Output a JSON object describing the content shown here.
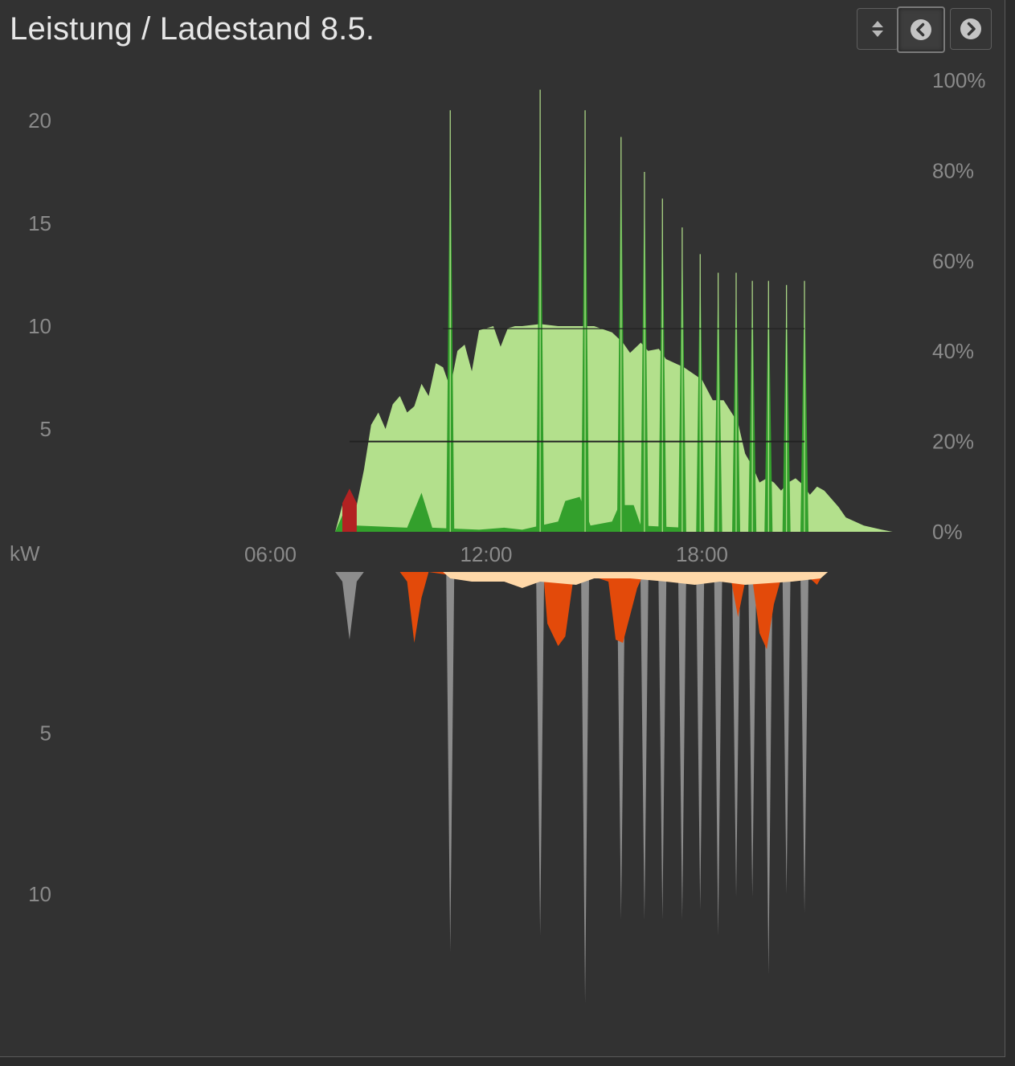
{
  "header": {
    "title": "Leistung / Ladestand 8.5.",
    "buttons": [
      {
        "name": "sort-toggle-button",
        "icon": "up-down-arrows-icon"
      },
      {
        "name": "previous-day-button",
        "icon": "chevron-left-circle-icon"
      },
      {
        "name": "next-day-button",
        "icon": "chevron-right-circle-icon"
      }
    ]
  },
  "chart_data": {
    "type": "area",
    "unit_label": "kW",
    "x_ticks": [
      "06:00",
      "12:00",
      "18:00"
    ],
    "x_range_hours": [
      -1.5,
      23
    ],
    "y_top": {
      "ticks": [
        "5",
        "10",
        "15",
        "20"
      ],
      "range": [
        0,
        20
      ]
    },
    "y_soc": {
      "ticks": [
        "0%",
        "20%",
        "40%",
        "60%",
        "80%",
        "100%"
      ],
      "range": [
        0,
        100
      ]
    },
    "y_bottom": {
      "ticks": [
        "5",
        "10"
      ],
      "range": [
        0,
        10
      ]
    },
    "colors": {
      "pv": "#b3e08c",
      "battery_discharge": "#33a02c",
      "grid_import": "#b22222",
      "consumption": "#8c8c8c",
      "battery_charge": "#e34a0a",
      "grid_export": "#ffd8a8",
      "soc_line": "#222222"
    },
    "series": [
      {
        "key": "pv",
        "points": [
          [
            7.8,
            0
          ],
          [
            8.0,
            1.3
          ],
          [
            8.2,
            1.2
          ],
          [
            8.4,
            1.3
          ],
          [
            8.6,
            3.0
          ],
          [
            8.8,
            5.2
          ],
          [
            9.0,
            5.8
          ],
          [
            9.2,
            5.0
          ],
          [
            9.4,
            6.2
          ],
          [
            9.6,
            6.6
          ],
          [
            9.8,
            5.8
          ],
          [
            10.0,
            6.1
          ],
          [
            10.2,
            7.2
          ],
          [
            10.4,
            6.6
          ],
          [
            10.6,
            8.2
          ],
          [
            10.8,
            8.0
          ],
          [
            11.0,
            7.0
          ],
          [
            11.2,
            8.8
          ],
          [
            11.4,
            9.1
          ],
          [
            11.6,
            7.8
          ],
          [
            11.8,
            9.8
          ],
          [
            12.0,
            9.9
          ],
          [
            12.2,
            10.0
          ],
          [
            12.4,
            9.0
          ],
          [
            12.6,
            9.9
          ],
          [
            12.8,
            10.0
          ],
          [
            13.0,
            10.0
          ],
          [
            13.5,
            10.1
          ],
          [
            14.0,
            10.0
          ],
          [
            14.5,
            10.0
          ],
          [
            15.0,
            10.0
          ],
          [
            15.5,
            9.7
          ],
          [
            15.8,
            9.2
          ],
          [
            16.0,
            8.7
          ],
          [
            16.3,
            9.2
          ],
          [
            16.5,
            8.8
          ],
          [
            16.8,
            8.9
          ],
          [
            17.0,
            8.4
          ],
          [
            17.5,
            8.0
          ],
          [
            18.0,
            7.4
          ],
          [
            18.3,
            6.4
          ],
          [
            18.6,
            6.4
          ],
          [
            19.0,
            5.3
          ],
          [
            19.2,
            3.8
          ],
          [
            19.4,
            3.2
          ],
          [
            19.6,
            2.4
          ],
          [
            19.8,
            2.6
          ],
          [
            20.0,
            2.4
          ],
          [
            20.2,
            2.0
          ],
          [
            20.4,
            2.4
          ],
          [
            20.6,
            2.6
          ],
          [
            20.8,
            2.3
          ],
          [
            21.0,
            1.8
          ],
          [
            21.2,
            2.2
          ],
          [
            21.4,
            2.0
          ],
          [
            21.8,
            1.2
          ],
          [
            22.0,
            0.7
          ],
          [
            22.5,
            0.3
          ],
          [
            23.0,
            0.1
          ],
          [
            23.3,
            0
          ]
        ]
      },
      {
        "key": "battery_discharge",
        "points": [
          [
            7.8,
            0
          ],
          [
            8.1,
            1.2
          ],
          [
            8.4,
            0.3
          ],
          [
            9.8,
            0.2
          ],
          [
            10.2,
            1.9
          ],
          [
            10.5,
            0.2
          ],
          [
            11.8,
            0.1
          ],
          [
            12.5,
            0.2
          ],
          [
            13.0,
            0.1
          ],
          [
            14.0,
            0.5
          ],
          [
            14.2,
            1.5
          ],
          [
            14.6,
            1.7
          ],
          [
            14.9,
            0.3
          ],
          [
            15.5,
            0.5
          ],
          [
            15.7,
            1.3
          ],
          [
            16.1,
            1.3
          ],
          [
            16.3,
            0.3
          ],
          [
            17.5,
            0.2
          ]
        ]
      },
      {
        "key": "grid_import",
        "points": [
          [
            8.0,
            1.4
          ],
          [
            8.2,
            2.1
          ],
          [
            8.4,
            1.4
          ]
        ]
      },
      {
        "key": "consumption",
        "points": [
          [
            7.8,
            0
          ],
          [
            8.0,
            0.3
          ],
          [
            8.2,
            2.1
          ],
          [
            8.4,
            0.3
          ],
          [
            8.6,
            0
          ]
        ]
      },
      {
        "key": "battery_charge",
        "points": [
          [
            9.6,
            0
          ],
          [
            9.8,
            0.3
          ],
          [
            10.0,
            2.2
          ],
          [
            10.2,
            0.8
          ],
          [
            10.4,
            0
          ],
          [
            11.6,
            0.2
          ],
          [
            12.0,
            0.1
          ],
          [
            12.6,
            0.3
          ],
          [
            13.0,
            0.1
          ],
          [
            13.6,
            0.2
          ],
          [
            13.7,
            1.6
          ],
          [
            14.0,
            2.3
          ],
          [
            14.2,
            2.0
          ],
          [
            14.4,
            0.4
          ],
          [
            14.6,
            0
          ],
          [
            15.4,
            0.3
          ],
          [
            15.6,
            2.1
          ],
          [
            15.8,
            2.2
          ],
          [
            16.2,
            0.5
          ],
          [
            16.4,
            0
          ],
          [
            18.8,
            0.2
          ],
          [
            19.0,
            1.4
          ],
          [
            19.2,
            0.3
          ],
          [
            19.4,
            0.2
          ],
          [
            19.6,
            1.9
          ],
          [
            19.8,
            2.4
          ],
          [
            20.0,
            1.0
          ],
          [
            20.2,
            0.2
          ],
          [
            21.0,
            0.2
          ],
          [
            21.2,
            0.4
          ],
          [
            21.4,
            0
          ]
        ]
      },
      {
        "key": "grid_export",
        "points": [
          [
            10.8,
            0
          ],
          [
            11.0,
            0.2
          ],
          [
            11.6,
            0.3
          ],
          [
            12.5,
            0.3
          ],
          [
            13.0,
            0.5
          ],
          [
            13.5,
            0.3
          ],
          [
            14.5,
            0.4
          ],
          [
            15.0,
            0.2
          ],
          [
            16.0,
            0.2
          ],
          [
            17.0,
            0.3
          ],
          [
            17.8,
            0.4
          ],
          [
            18.5,
            0.3
          ],
          [
            19.2,
            0.4
          ],
          [
            20.5,
            0.3
          ],
          [
            21.3,
            0.2
          ],
          [
            21.5,
            0
          ]
        ]
      }
    ],
    "spikes": [
      {
        "hour": 11.0,
        "up": 20.5,
        "down": 11.8
      },
      {
        "hour": 13.5,
        "up": 21.5,
        "down": 11.3
      },
      {
        "hour": 14.75,
        "up": 20.5,
        "down": 13.4
      },
      {
        "hour": 15.75,
        "up": 19.2,
        "down": 10.8
      },
      {
        "hour": 16.4,
        "up": 17.5,
        "down": 10.8
      },
      {
        "hour": 16.9,
        "up": 16.2,
        "down": 10.8
      },
      {
        "hour": 17.45,
        "up": 14.8,
        "down": 10.8
      },
      {
        "hour": 17.95,
        "up": 13.5,
        "down": 10.5
      },
      {
        "hour": 18.45,
        "up": 12.6,
        "down": 11.3
      },
      {
        "hour": 18.95,
        "up": 12.6,
        "down": 10.1
      },
      {
        "hour": 19.4,
        "up": 12.2,
        "down": 10.1
      },
      {
        "hour": 19.85,
        "up": 12.2,
        "down": 12.5
      },
      {
        "hour": 20.35,
        "up": 12.0,
        "down": 10.0
      },
      {
        "hour": 20.85,
        "up": 12.2,
        "down": 10.6
      }
    ],
    "soc": [
      [
        8.2,
        20
      ],
      [
        20.85,
        20
      ]
    ],
    "soc_upper": [
      [
        10.8,
        45
      ],
      [
        20.85,
        45
      ]
    ]
  }
}
